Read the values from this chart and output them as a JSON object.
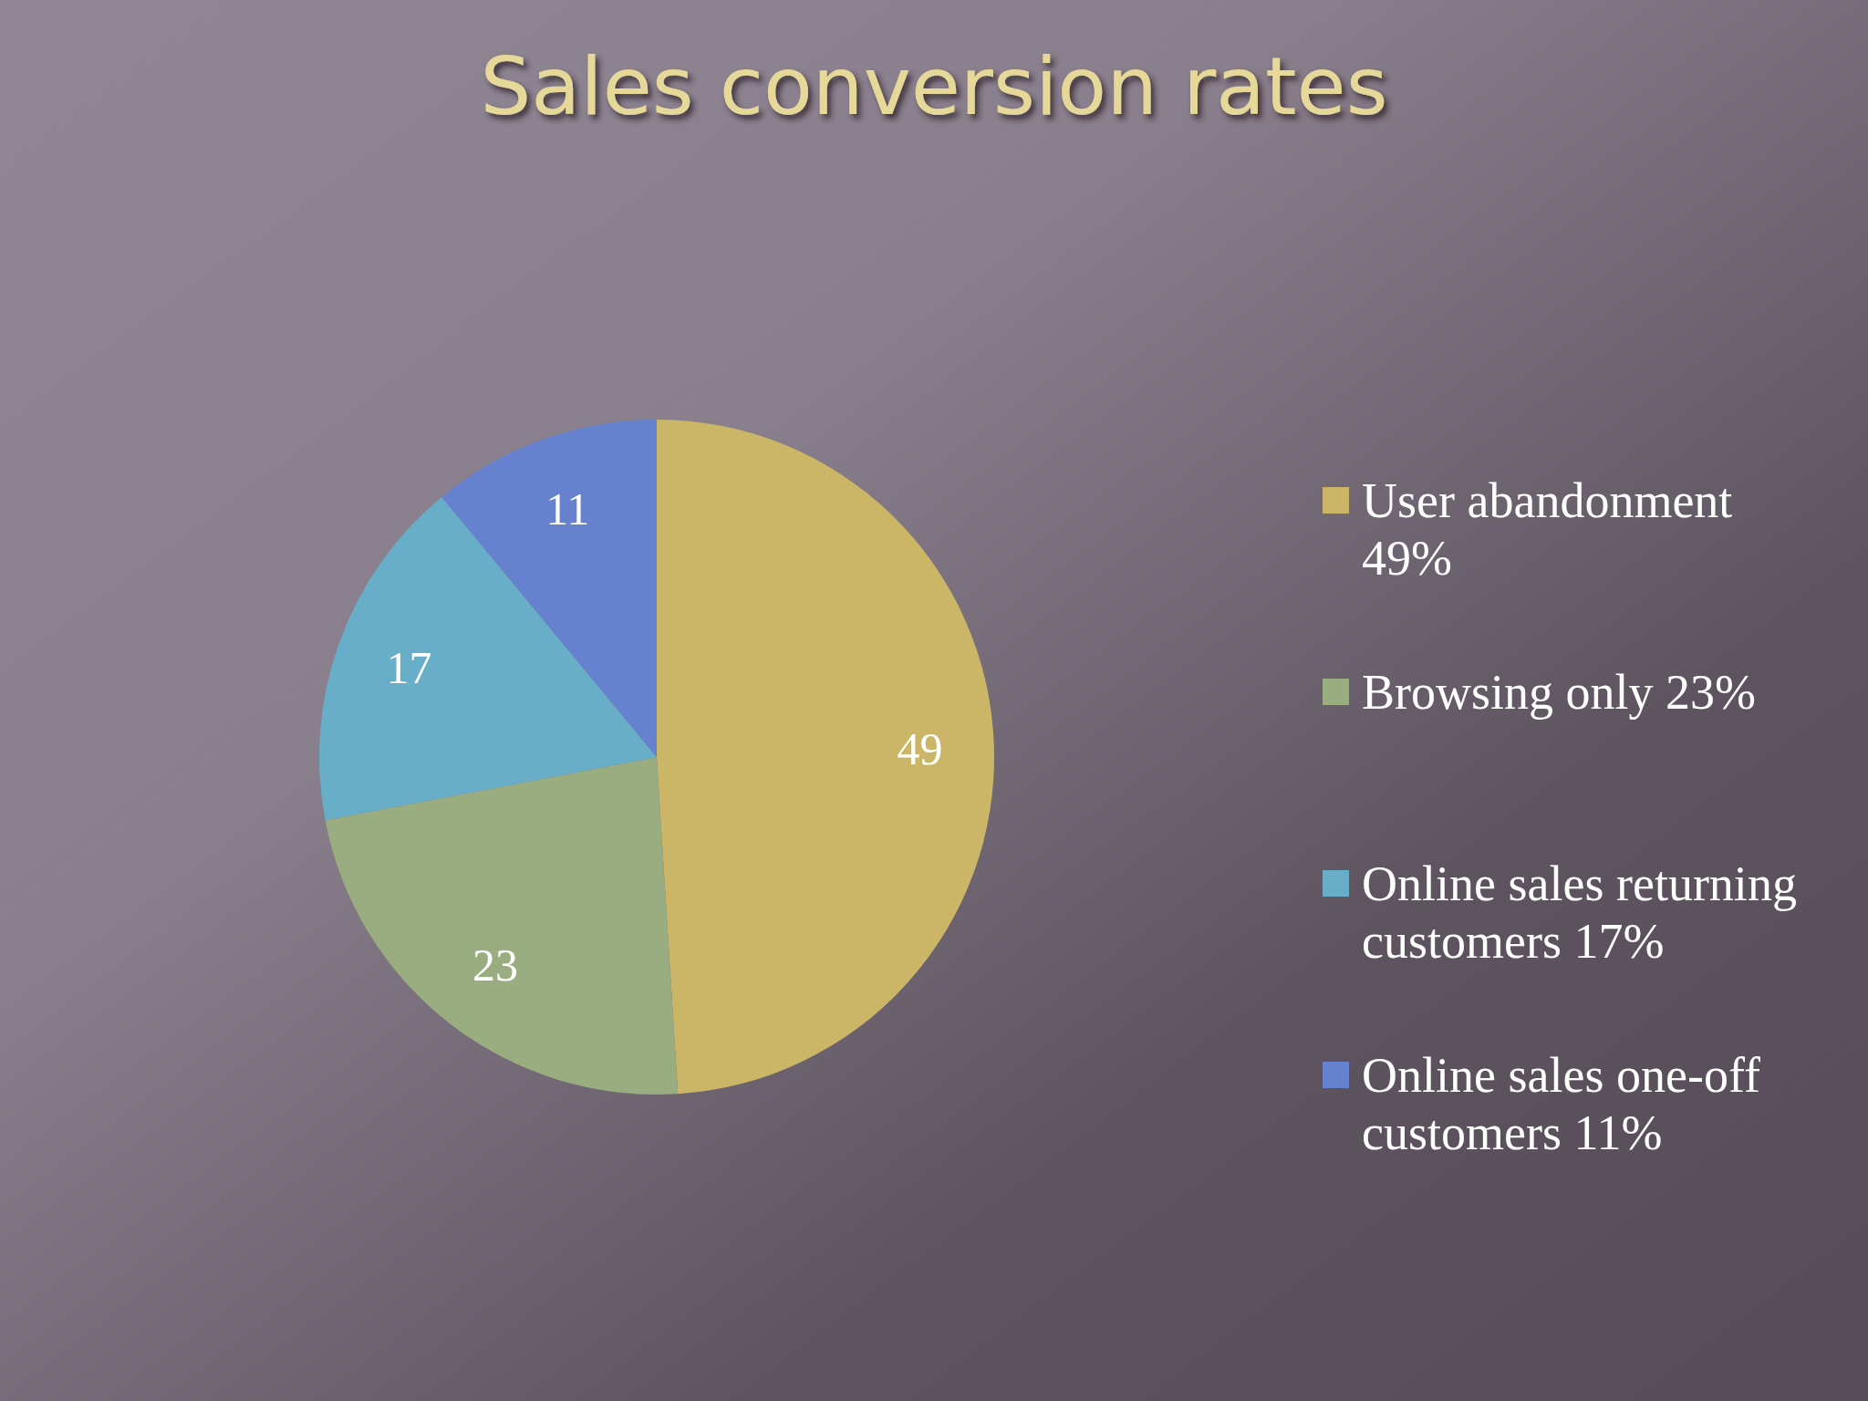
{
  "chart_data": {
    "type": "pie",
    "title": "Sales conversion rates",
    "categories": [
      "User abandonment 49%",
      "Browsing only 23%",
      "Online sales returning customers 17%",
      "Online sales one-off customers 11%"
    ],
    "values": [
      49,
      23,
      17,
      11
    ],
    "colors": [
      "#cbb567",
      "#9aad80",
      "#68aec8",
      "#6682cf"
    ],
    "data_labels": true,
    "legend": "right"
  }
}
